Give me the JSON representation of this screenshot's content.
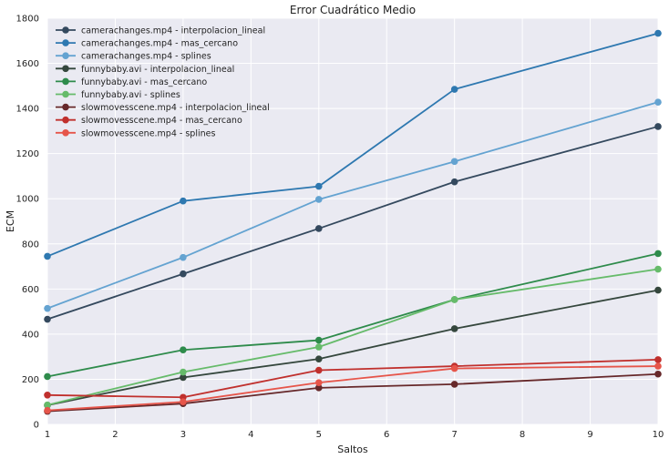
{
  "chart_data": {
    "type": "line",
    "title": "Error Cuadrático Medio",
    "xlabel": "Saltos",
    "ylabel": "ECM",
    "xlim": [
      1,
      10
    ],
    "ylim": [
      0,
      1800
    ],
    "xticks": [
      "1",
      "2",
      "3",
      "4",
      "5",
      "6",
      "7",
      "8",
      "9",
      "10"
    ],
    "yticks": [
      "0",
      "200",
      "400",
      "600",
      "800",
      "1000",
      "1200",
      "1400",
      "1600",
      "1800"
    ],
    "grid": true,
    "legend_position": "top-left",
    "x": [
      1,
      3,
      5,
      7,
      10
    ],
    "series": [
      {
        "name": "camerachanges.mp4 - interpolacion_lineal",
        "color": "#34495e",
        "values": [
          466,
          667,
          868,
          1075,
          1320
        ]
      },
      {
        "name": "camerachanges.mp4 - mas_cercano",
        "color": "#2e78b0",
        "values": [
          745,
          990,
          1055,
          1485,
          1733
        ]
      },
      {
        "name": "camerachanges.mp4 - splines",
        "color": "#64a3d1",
        "values": [
          514,
          740,
          997,
          1165,
          1428
        ]
      },
      {
        "name": "funnybaby.avi - interpolacion_lineal",
        "color": "#35473d",
        "values": [
          85,
          208,
          290,
          424,
          595
        ]
      },
      {
        "name": "funnybaby.avi - mas_cercano",
        "color": "#2e8b4b",
        "values": [
          212,
          330,
          373,
          553,
          757
        ]
      },
      {
        "name": "funnybaby.avi - splines",
        "color": "#66bb6a",
        "values": [
          86,
          232,
          343,
          553,
          688
        ]
      },
      {
        "name": "slowmovesscene.mp4 - interpolacion_lineal",
        "color": "#66282a",
        "values": [
          58,
          92,
          162,
          178,
          223
        ]
      },
      {
        "name": "slowmovesscene.mp4 - mas_cercano",
        "color": "#c0302d",
        "values": [
          130,
          120,
          240,
          258,
          287
        ]
      },
      {
        "name": "slowmovesscene.mp4 - splines",
        "color": "#e6554a",
        "values": [
          62,
          100,
          185,
          248,
          258
        ]
      }
    ]
  }
}
